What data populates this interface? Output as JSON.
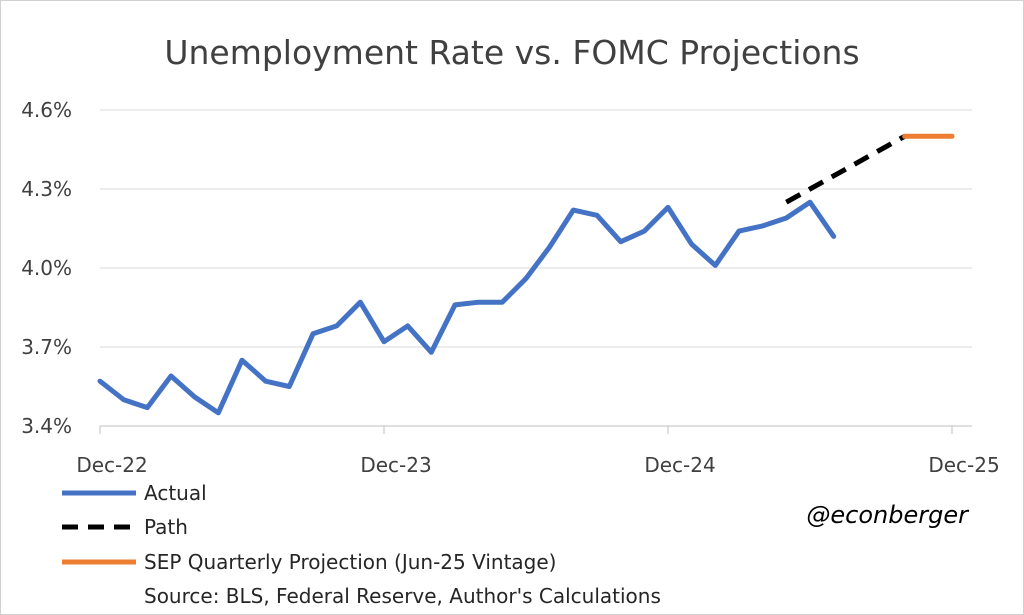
{
  "chart_data": {
    "type": "line",
    "title": "Unemployment Rate vs. FOMC Projections",
    "ylim": [
      3.4,
      4.6
    ],
    "yticks": [
      3.4,
      3.7,
      4.0,
      4.3,
      4.6
    ],
    "ytick_labels": [
      "3.4%",
      "3.7%",
      "4.0%",
      "4.3%",
      "4.6%"
    ],
    "xlim": [
      0,
      36
    ],
    "xticks": [
      0,
      12,
      24,
      36
    ],
    "xtick_labels": [
      "Dec-22",
      "Dec-23",
      "Dec-24",
      "Dec-25"
    ],
    "grid": true,
    "legend_position": "bottom-left",
    "series": [
      {
        "name": "Actual",
        "color": "#4472C4",
        "style": "solid",
        "x": [
          0,
          1,
          2,
          3,
          4,
          5,
          6,
          7,
          8,
          9,
          10,
          11,
          12,
          13,
          14,
          15,
          16,
          17,
          18,
          19,
          20,
          21,
          22,
          23,
          24,
          25,
          26,
          27,
          28,
          29,
          30,
          31
        ],
        "values": [
          3.57,
          3.5,
          3.47,
          3.59,
          3.51,
          3.45,
          3.65,
          3.57,
          3.55,
          3.75,
          3.78,
          3.87,
          3.72,
          3.78,
          3.68,
          3.86,
          3.87,
          3.87,
          3.96,
          4.08,
          4.22,
          4.2,
          4.1,
          4.14,
          4.23,
          4.09,
          4.01,
          4.14,
          4.16,
          4.19,
          4.25,
          4.12
        ]
      },
      {
        "name": "Path",
        "color": "#000000",
        "style": "dashed",
        "x": [
          29,
          34
        ],
        "values": [
          4.25,
          4.5
        ]
      },
      {
        "name": "SEP Quarterly Projection (Jun-25 Vintage)",
        "color": "#ED7D31",
        "style": "solid",
        "x": [
          34,
          36
        ],
        "values": [
          4.5,
          4.5
        ]
      }
    ]
  },
  "chart_data_note": "",
  "source": "Source: BLS, Federal Reserve, Author's Calculations",
  "handle": "@econberger"
}
